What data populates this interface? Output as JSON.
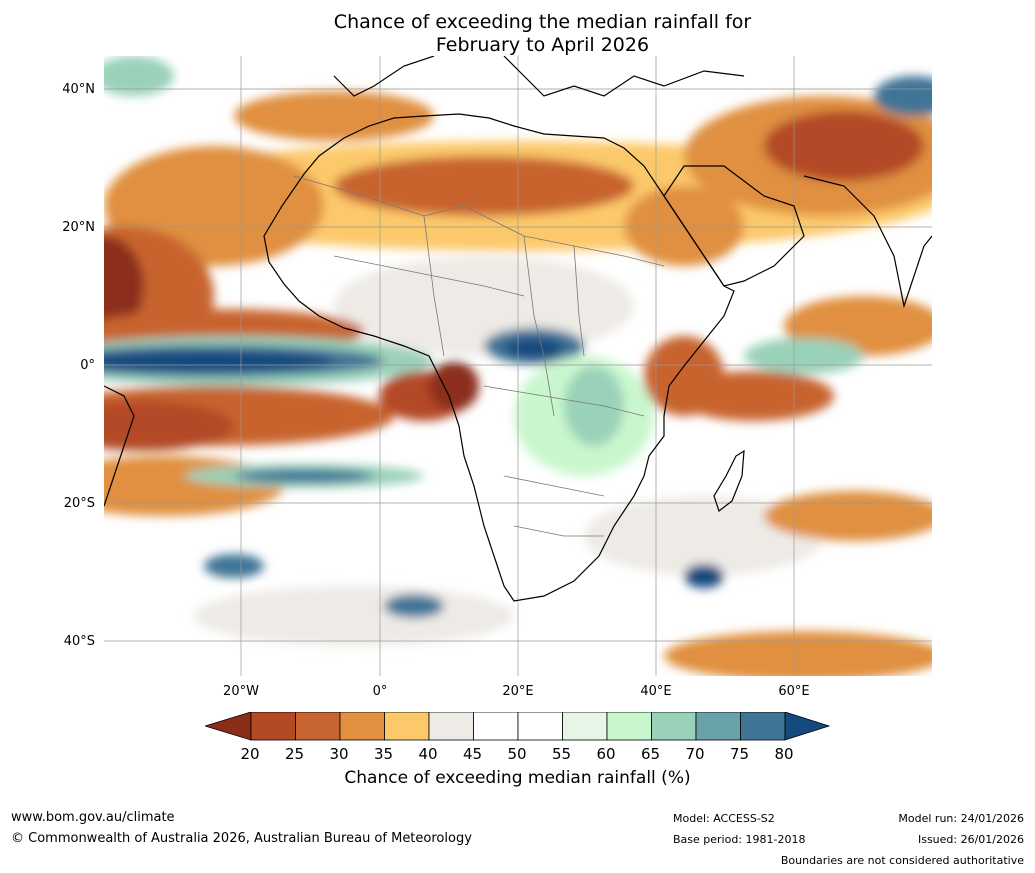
{
  "title": {
    "line1": "Chance of exceeding the median rainfall for",
    "line2": "February to April 2026"
  },
  "map": {
    "region": "Africa and surrounds",
    "lat_labels": [
      "40°N",
      "20°N",
      "0°",
      "20°S",
      "40°S"
    ],
    "lon_labels": [
      "20°W",
      "0°",
      "20°E",
      "40°E",
      "60°E"
    ]
  },
  "colorbar": {
    "ticks": [
      "20",
      "25",
      "30",
      "35",
      "40",
      "45",
      "50",
      "55",
      "60",
      "65",
      "70",
      "75",
      "80"
    ],
    "colors": [
      "#8c2d1a",
      "#b34a25",
      "#c8642f",
      "#e0903f",
      "#fcc96a",
      "#eeebe6",
      "#ffffff",
      "#ffffff",
      "#e6f5e6",
      "#c9f7cd",
      "#9ad1b9",
      "#6aa2a9",
      "#3f7597",
      "#154a7f"
    ],
    "label": "Chance of exceeding median rainfall (%)"
  },
  "footer": {
    "website": "www.bom.gov.au/climate",
    "copyright": "© Commonwealth of Australia 2026, Australian Bureau of Meteorology",
    "model": "Model: ACCESS-S2",
    "base_period": "Base period: 1981-2018",
    "model_run": "Model run: 24/01/2026",
    "issued": "Issued: 26/01/2026",
    "disclaimer": "Boundaries are not considered authoritative"
  }
}
